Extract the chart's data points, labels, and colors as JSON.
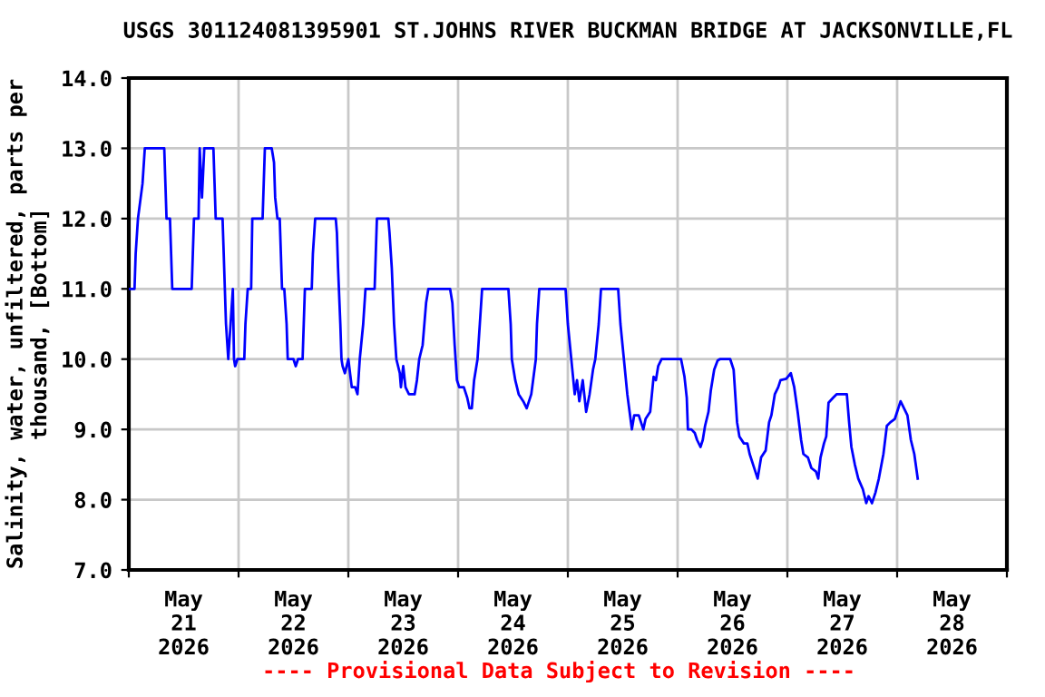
{
  "chart_data": {
    "type": "line",
    "title": "USGS 301124081395901 ST.JOHNS RIVER BUCKMAN BRIDGE AT JACKSONVILLE,FL",
    "ylabel": "Salinity, water, unfiltered, parts per\nthousand, [Bottom]",
    "annotations": [
      "---- Provisional Data Subject to Revision ----"
    ],
    "x": [
      "2026-05-21T00:00",
      "2026-05-21T01:15",
      "2026-05-21T01:30",
      "2026-05-21T02:00",
      "2026-05-21T03:00",
      "2026-05-21T03:30",
      "2026-05-21T07:45",
      "2026-05-21T08:00",
      "2026-05-21T08:15",
      "2026-05-21T09:00",
      "2026-05-21T09:15",
      "2026-05-21T09:30",
      "2026-05-21T13:45",
      "2026-05-21T14:00",
      "2026-05-21T14:15",
      "2026-05-21T15:15",
      "2026-05-21T15:30",
      "2026-05-21T16:00",
      "2026-05-21T16:30",
      "2026-05-21T18:30",
      "2026-05-21T18:45",
      "2026-05-21T19:00",
      "2026-05-21T20:30",
      "2026-05-21T20:45",
      "2026-05-21T21:00",
      "2026-05-21T21:15",
      "2026-05-21T21:45",
      "2026-05-21T22:15",
      "2026-05-21T22:45",
      "2026-05-21T23:00",
      "2026-05-21T23:15",
      "2026-05-21T23:45",
      "2026-05-22T01:15",
      "2026-05-22T01:30",
      "2026-05-22T02:00",
      "2026-05-22T02:45",
      "2026-05-22T03:00",
      "2026-05-22T05:15",
      "2026-05-22T05:30",
      "2026-05-22T05:45",
      "2026-05-22T07:15",
      "2026-05-22T07:45",
      "2026-05-22T08:00",
      "2026-05-22T08:30",
      "2026-05-22T09:00",
      "2026-05-22T09:15",
      "2026-05-22T09:30",
      "2026-05-22T10:00",
      "2026-05-22T10:30",
      "2026-05-22T10:45",
      "2026-05-22T12:00",
      "2026-05-22T12:30",
      "2026-05-22T13:00",
      "2026-05-22T14:00",
      "2026-05-22T14:15",
      "2026-05-22T14:30",
      "2026-05-22T16:00",
      "2026-05-22T16:15",
      "2026-05-22T16:45",
      "2026-05-22T21:15",
      "2026-05-22T21:30",
      "2026-05-22T21:45",
      "2026-05-22T22:15",
      "2026-05-22T22:30",
      "2026-05-22T22:45",
      "2026-05-22T23:15",
      "2026-05-23T00:00",
      "2026-05-23T00:45",
      "2026-05-23T01:30",
      "2026-05-23T02:00",
      "2026-05-23T02:30",
      "2026-05-23T03:15",
      "2026-05-23T03:45",
      "2026-05-23T05:45",
      "2026-05-23T06:00",
      "2026-05-23T06:15",
      "2026-05-23T08:45",
      "2026-05-23T09:00",
      "2026-05-23T09:30",
      "2026-05-23T10:00",
      "2026-05-23T10:30",
      "2026-05-23T11:15",
      "2026-05-23T11:30",
      "2026-05-23T12:00",
      "2026-05-23T12:30",
      "2026-05-23T13:15",
      "2026-05-23T14:30",
      "2026-05-23T15:00",
      "2026-05-23T15:30",
      "2026-05-23T16:15",
      "2026-05-23T17:00",
      "2026-05-23T17:30",
      "2026-05-23T22:15",
      "2026-05-23T22:45",
      "2026-05-23T23:15",
      "2026-05-23T23:45",
      "2026-05-24T00:15",
      "2026-05-24T01:15",
      "2026-05-24T02:00",
      "2026-05-24T02:30",
      "2026-05-24T03:00",
      "2026-05-24T03:30",
      "2026-05-24T04:15",
      "2026-05-24T04:45",
      "2026-05-24T05:15",
      "2026-05-24T11:00",
      "2026-05-24T11:30",
      "2026-05-24T11:45",
      "2026-05-24T12:30",
      "2026-05-24T13:15",
      "2026-05-24T14:15",
      "2026-05-24T15:00",
      "2026-05-24T16:00",
      "2026-05-24T17:00",
      "2026-05-24T17:15",
      "2026-05-24T17:45",
      "2026-05-24T23:30",
      "2026-05-25T00:00",
      "2026-05-25T00:45",
      "2026-05-25T01:30",
      "2026-05-25T02:00",
      "2026-05-25T02:30",
      "2026-05-25T03:15",
      "2026-05-25T04:00",
      "2026-05-25T04:45",
      "2026-05-25T05:30",
      "2026-05-25T06:00",
      "2026-05-25T06:45",
      "2026-05-25T07:15",
      "2026-05-25T11:00",
      "2026-05-25T11:30",
      "2026-05-25T12:15",
      "2026-05-25T13:00",
      "2026-05-25T13:30",
      "2026-05-25T14:00",
      "2026-05-25T14:30",
      "2026-05-25T15:30",
      "2026-05-25T16:30",
      "2026-05-25T17:00",
      "2026-05-25T18:00",
      "2026-05-25T18:45",
      "2026-05-25T19:15",
      "2026-05-25T19:45",
      "2026-05-25T20:30",
      "2026-05-26T00:45",
      "2026-05-26T01:30",
      "2026-05-26T02:00",
      "2026-05-26T02:15",
      "2026-05-26T03:00",
      "2026-05-26T03:45",
      "2026-05-26T04:15",
      "2026-05-26T05:00",
      "2026-05-26T05:30",
      "2026-05-26T06:00",
      "2026-05-26T06:45",
      "2026-05-26T07:15",
      "2026-05-26T08:00",
      "2026-05-26T08:45",
      "2026-05-26T09:15",
      "2026-05-26T11:30",
      "2026-05-26T12:15",
      "2026-05-26T13:00",
      "2026-05-26T13:30",
      "2026-05-26T14:30",
      "2026-05-26T15:15",
      "2026-05-26T15:45",
      "2026-05-26T16:30",
      "2026-05-26T17:30",
      "2026-05-26T18:15",
      "2026-05-26T19:15",
      "2026-05-26T20:00",
      "2026-05-26T20:30",
      "2026-05-26T21:15",
      "2026-05-26T22:00",
      "2026-05-26T22:30",
      "2026-05-26T23:45",
      "2026-05-27T00:45",
      "2026-05-27T01:30",
      "2026-05-27T02:15",
      "2026-05-27T03:00",
      "2026-05-27T03:30",
      "2026-05-27T04:30",
      "2026-05-27T05:15",
      "2026-05-27T06:15",
      "2026-05-27T06:45",
      "2026-05-27T07:15",
      "2026-05-27T08:00",
      "2026-05-27T08:30",
      "2026-05-27T09:00",
      "2026-05-27T10:00",
      "2026-05-27T10:45",
      "2026-05-27T13:00",
      "2026-05-27T13:30",
      "2026-05-27T14:00",
      "2026-05-27T14:45",
      "2026-05-27T15:30",
      "2026-05-27T16:30",
      "2026-05-27T17:15",
      "2026-05-27T17:45",
      "2026-05-27T18:30",
      "2026-05-27T19:15",
      "2026-05-27T20:00",
      "2026-05-27T21:00",
      "2026-05-27T21:45",
      "2026-05-27T22:30",
      "2026-05-27T23:30",
      "2026-05-28T00:00",
      "2026-05-28T00:45",
      "2026-05-28T01:30",
      "2026-05-28T02:15",
      "2026-05-28T03:00",
      "2026-05-28T03:45",
      "2026-05-28T04:30"
    ],
    "series": [
      {
        "color": "#0000ff",
        "values": [
          11.0,
          11.0,
          11.5,
          12.0,
          12.5,
          13.0,
          13.0,
          12.5,
          12.0,
          12.0,
          11.5,
          11.0,
          11.0,
          11.5,
          12.0,
          12.0,
          13.0,
          12.3,
          13.0,
          13.0,
          12.5,
          12.0,
          12.0,
          11.5,
          11.0,
          10.5,
          10.0,
          10.5,
          11.0,
          10.0,
          9.9,
          10.0,
          10.0,
          10.5,
          11.0,
          11.0,
          12.0,
          12.0,
          12.5,
          13.0,
          13.0,
          12.8,
          12.3,
          12.0,
          12.0,
          11.5,
          11.0,
          11.0,
          10.5,
          10.0,
          10.0,
          9.9,
          10.0,
          10.0,
          10.5,
          11.0,
          11.0,
          11.5,
          12.0,
          12.0,
          11.8,
          11.3,
          10.5,
          10.0,
          9.9,
          9.8,
          10.0,
          9.6,
          9.6,
          9.5,
          10.0,
          10.5,
          11.0,
          11.0,
          11.5,
          12.0,
          12.0,
          11.8,
          11.3,
          10.5,
          10.0,
          9.8,
          9.6,
          9.9,
          9.6,
          9.5,
          9.5,
          9.7,
          10.0,
          10.2,
          10.8,
          11.0,
          11.0,
          10.8,
          10.2,
          9.7,
          9.6,
          9.6,
          9.45,
          9.3,
          9.3,
          9.7,
          10.0,
          10.5,
          11.0,
          11.0,
          10.5,
          10.0,
          9.7,
          9.5,
          9.4,
          9.3,
          9.5,
          10.0,
          10.5,
          11.0,
          11.0,
          10.5,
          10.0,
          9.5,
          9.7,
          9.4,
          9.7,
          9.25,
          9.5,
          9.85,
          10.0,
          10.5,
          11.0,
          11.0,
          10.5,
          10.0,
          9.5,
          9.25,
          9.0,
          9.2,
          9.2,
          9.0,
          9.15,
          9.25,
          9.75,
          9.7,
          9.9,
          10.0,
          10.0,
          9.75,
          9.45,
          9.0,
          9.0,
          8.95,
          8.85,
          8.75,
          8.85,
          9.05,
          9.25,
          9.55,
          9.85,
          9.98,
          10.0,
          10.0,
          9.85,
          9.1,
          8.9,
          8.8,
          8.8,
          8.65,
          8.5,
          8.3,
          8.6,
          8.7,
          9.1,
          9.2,
          9.5,
          9.6,
          9.7,
          9.72,
          9.8,
          9.6,
          9.25,
          8.85,
          8.65,
          8.6,
          8.45,
          8.4,
          8.3,
          8.6,
          8.8,
          8.9,
          9.38,
          9.45,
          9.5,
          9.5,
          9.1,
          8.75,
          8.5,
          8.3,
          8.15,
          7.95,
          8.05,
          7.95,
          8.1,
          8.3,
          8.65,
          9.05,
          9.1,
          9.15,
          9.25,
          9.4,
          9.3,
          9.2,
          8.85,
          8.65,
          8.3
        ]
      }
    ],
    "xlim": [
      "2026-05-21T00:00",
      "2026-05-29T00:00"
    ],
    "xticks": [
      {
        "value": "2026-05-21T00:00",
        "label": null
      },
      {
        "value": "2026-05-21T12:00",
        "label": "May\n21\n2026"
      },
      {
        "value": "2026-05-22T00:00",
        "label": null
      },
      {
        "value": "2026-05-22T12:00",
        "label": "May\n22\n2026"
      },
      {
        "value": "2026-05-23T00:00",
        "label": null
      },
      {
        "value": "2026-05-23T12:00",
        "label": "May\n23\n2026"
      },
      {
        "value": "2026-05-24T00:00",
        "label": null
      },
      {
        "value": "2026-05-24T12:00",
        "label": "May\n24\n2026"
      },
      {
        "value": "2026-05-25T00:00",
        "label": null
      },
      {
        "value": "2026-05-25T12:00",
        "label": "May\n25\n2026"
      },
      {
        "value": "2026-05-26T00:00",
        "label": null
      },
      {
        "value": "2026-05-26T12:00",
        "label": "May\n26\n2026"
      },
      {
        "value": "2026-05-27T00:00",
        "label": null
      },
      {
        "value": "2026-05-27T12:00",
        "label": "May\n27\n2026"
      },
      {
        "value": "2026-05-28T00:00",
        "label": null
      },
      {
        "value": "2026-05-28T12:00",
        "label": "May\n28\n2026"
      },
      {
        "value": "2026-05-29T00:00",
        "label": null
      }
    ],
    "ylim": [
      7,
      14
    ],
    "yticks": [
      {
        "value": 7,
        "label": "7.0"
      },
      {
        "value": 8,
        "label": "8.0"
      },
      {
        "value": 9,
        "label": "9.0"
      },
      {
        "value": 10,
        "label": "10.0"
      },
      {
        "value": 11,
        "label": "11.0"
      },
      {
        "value": 12,
        "label": "12.0"
      },
      {
        "value": 13,
        "label": "13.0"
      },
      {
        "value": 14,
        "label": "14.0"
      }
    ],
    "grid": true,
    "line_style": "solid",
    "marker": "none",
    "legend": false
  }
}
